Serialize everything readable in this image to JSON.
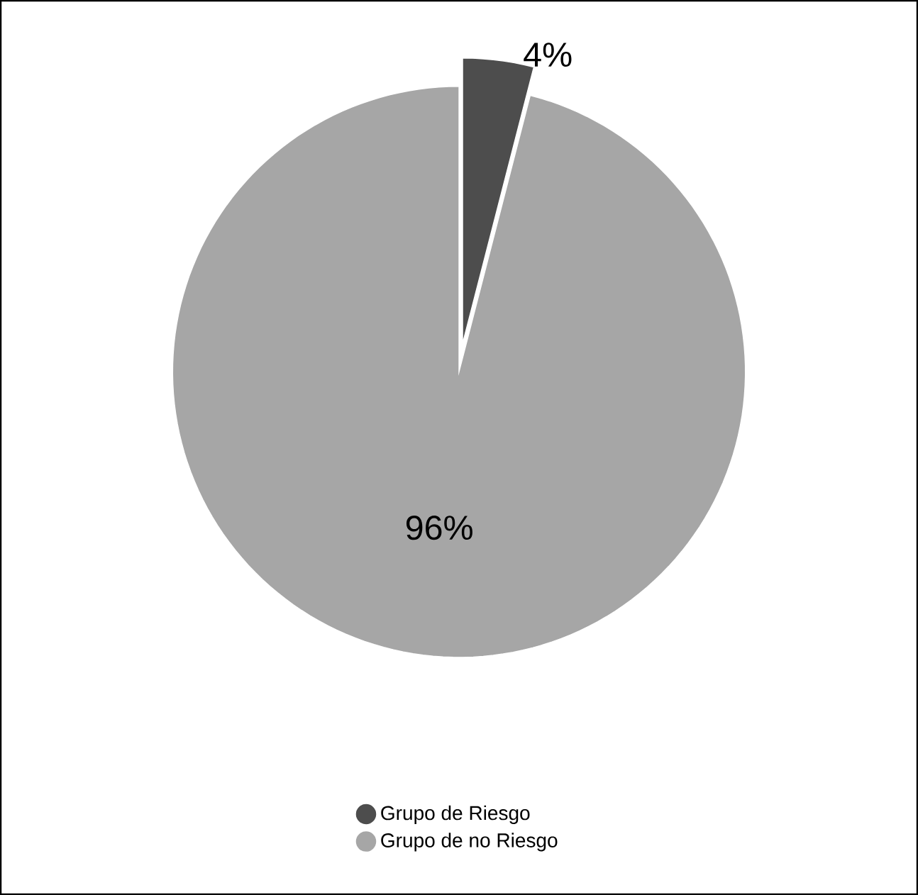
{
  "chart_data": {
    "type": "pie",
    "categories": [
      "Grupo de Riesgo",
      "Grupo de no Riesgo"
    ],
    "values": [
      4,
      96
    ],
    "colors": [
      "#4d4d4d",
      "#a6a6a6"
    ],
    "value_labels": [
      "4%",
      "96%"
    ],
    "legend": "bottom"
  }
}
